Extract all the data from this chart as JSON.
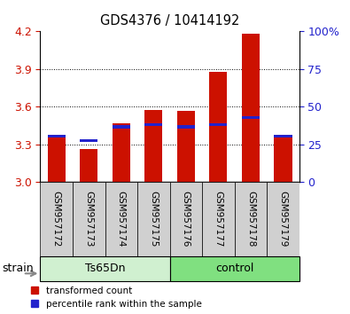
{
  "title": "GDS4376 / 10414192",
  "samples": [
    "GSM957172",
    "GSM957173",
    "GSM957174",
    "GSM957175",
    "GSM957176",
    "GSM957177",
    "GSM957178",
    "GSM957179"
  ],
  "red_values": [
    3.37,
    3.265,
    3.465,
    3.575,
    3.565,
    3.875,
    4.185,
    3.38
  ],
  "blue_values": [
    3.365,
    3.33,
    3.44,
    3.455,
    3.44,
    3.455,
    3.515,
    3.365
  ],
  "ymin": 3.0,
  "ymax": 4.2,
  "yticks_left": [
    3.0,
    3.3,
    3.6,
    3.9,
    4.2
  ],
  "yticks_right_labels": [
    "0",
    "25",
    "50",
    "75",
    "100%"
  ],
  "yticks_right_pct": [
    0,
    25,
    50,
    75,
    100
  ],
  "bar_color": "#cc1100",
  "blue_color": "#2222cc",
  "bar_width": 0.55,
  "ts65dn_color": "#d0f0d0",
  "control_color": "#80e080",
  "label_bg_color": "#d0d0d0",
  "strain_label": "strain",
  "legend_red": "transformed count",
  "legend_blue": "percentile rank within the sample",
  "left_tick_color": "#cc1100",
  "right_tick_color": "#2222cc",
  "grid_vals": [
    3.3,
    3.6,
    3.9
  ]
}
